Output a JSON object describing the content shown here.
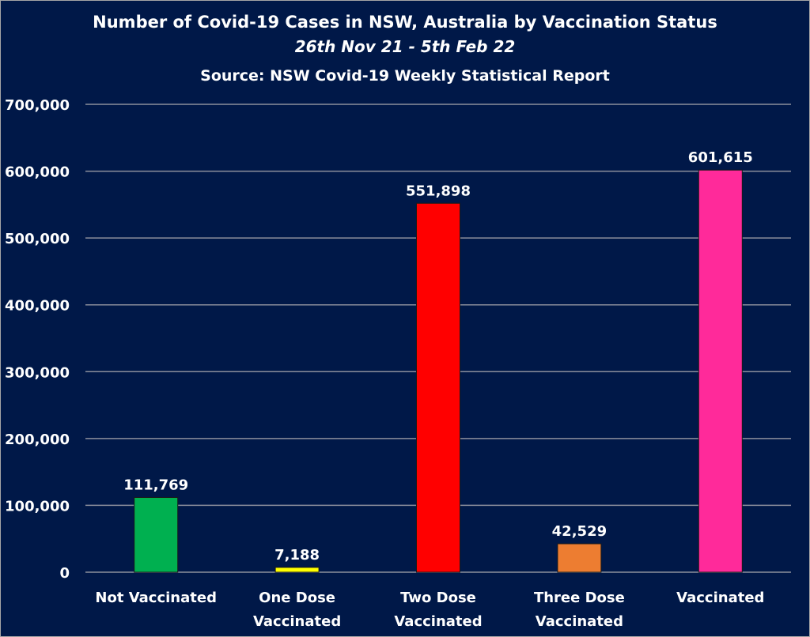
{
  "chart_data": {
    "type": "bar",
    "title": "Number of Covid-19 Cases in NSW, Australia by Vaccination Status",
    "subtitle": "26th Nov 21 - 5th Feb 22",
    "source": "Source: NSW Covid-19 Weekly Statistical Report",
    "xlabel": "",
    "ylabel": "",
    "ylim": [
      0,
      700000
    ],
    "yticks": [
      0,
      100000,
      200000,
      300000,
      400000,
      500000,
      600000,
      700000
    ],
    "ytick_labels": [
      "0",
      "100,000",
      "200,000",
      "300,000",
      "400,000",
      "500,000",
      "600,000",
      "700,000"
    ],
    "grid": true,
    "categories": [
      [
        "Not Vaccinated"
      ],
      [
        "One Dose",
        "Vaccinated"
      ],
      [
        "Two Dose",
        "Vaccinated"
      ],
      [
        "Three Dose",
        "Vaccinated"
      ],
      [
        "Vaccinated"
      ]
    ],
    "values": [
      111769,
      7188,
      551898,
      42529,
      601615
    ],
    "data_labels": [
      "111,769",
      "7,188",
      "551,898",
      "42,529",
      "601,615"
    ],
    "colors": [
      "#00b050",
      "#ffff00",
      "#ff0000",
      "#ed7d31",
      "#ff2a9a"
    ]
  },
  "style": {
    "background": "#001848",
    "grid": "#8c8f9c"
  }
}
